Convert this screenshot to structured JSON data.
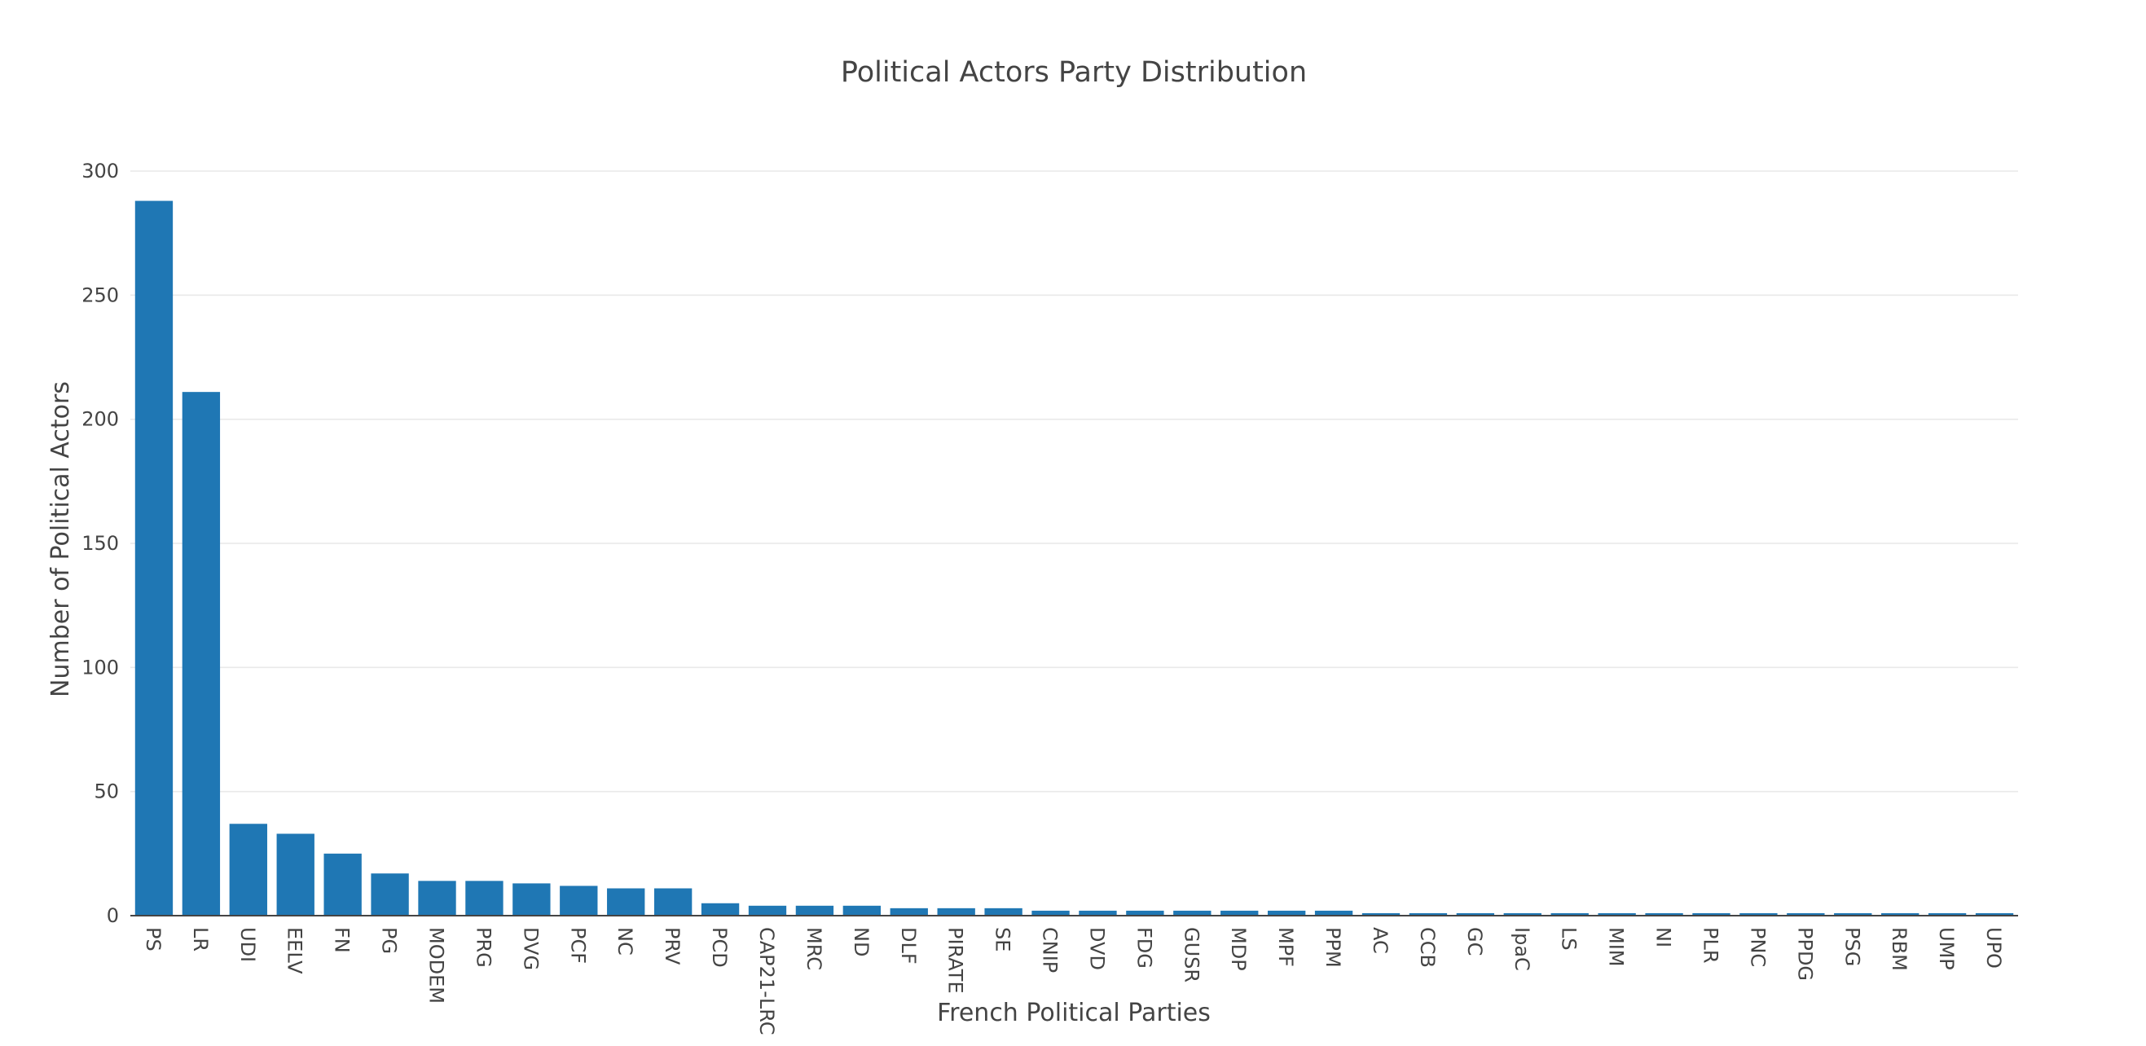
{
  "chart_data": {
    "type": "bar",
    "title": "Political Actors Party Distribution",
    "xlabel": "French  Political Parties",
    "ylabel": "Number of Political Actors",
    "ylim": [
      0,
      300
    ],
    "yticks": [
      0,
      50,
      100,
      150,
      200,
      250,
      300
    ],
    "grid": true,
    "color": "#1f77b4",
    "categories": [
      "PS",
      "LR",
      "UDI",
      "EELV",
      "FN",
      "PG",
      "MODEM",
      "PRG",
      "DVG",
      "PCF",
      "NC",
      "PRV",
      "PCD",
      "CAP21-LRC",
      "MRC",
      "ND",
      "DLF",
      "PIRATE",
      "SE",
      "CNIP",
      "DVD",
      "FDG",
      "GUSR",
      "MDP",
      "MPF",
      "PPM",
      "AC",
      "CCB",
      "GC",
      "IpaC",
      "LS",
      "MIM",
      "NI",
      "PLR",
      "PNC",
      "PPDG",
      "PSG",
      "RBM",
      "UMP",
      "UPO"
    ],
    "values": [
      288,
      211,
      37,
      33,
      25,
      17,
      14,
      14,
      13,
      12,
      11,
      11,
      5,
      4,
      4,
      4,
      3,
      3,
      3,
      2,
      2,
      2,
      2,
      2,
      2,
      2,
      1,
      1,
      1,
      1,
      1,
      1,
      1,
      1,
      1,
      1,
      1,
      1,
      1,
      1
    ]
  }
}
